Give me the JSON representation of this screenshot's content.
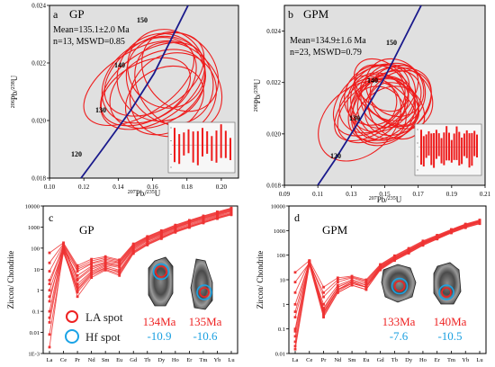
{
  "colors": {
    "ellipse": "#ee1c1c",
    "concordia": "#1a1a8c",
    "panel_bg": "#e0e0e0",
    "ree_line": "#ee3333",
    "hf_ring": "#1aa3e6",
    "la_ring": "#ee2222",
    "hf_text": "#1a9fe0",
    "la_text": "#ee2222"
  },
  "chart_data": [
    {
      "type": "scatter",
      "subtype": "concordia-ellipses",
      "panel_letter": "a",
      "name": "GP",
      "stats": [
        "Mean=135.1±2.0 Ma",
        "n=13, MSWD=0.85"
      ],
      "xlabel_parts": [
        "207",
        "Pb/",
        "235",
        "U"
      ],
      "ylabel_parts": [
        "206",
        "Pb/",
        "238",
        "U"
      ],
      "xlim": [
        0.1,
        0.21
      ],
      "ylim": [
        0.018,
        0.024
      ],
      "xticks": [
        "0.10",
        "0.12",
        "0.14",
        "0.16",
        "0.18",
        "0.20"
      ],
      "yticks": [
        "0.018",
        "0.020",
        "0.022",
        "0.024"
      ],
      "concordia_labels": [
        "120",
        "130",
        "140",
        "150"
      ],
      "ellipses": [
        {
          "x": 0.152,
          "y": 0.0213,
          "rx": 0.036,
          "ry": 0.0011,
          "rot": -32
        },
        {
          "x": 0.158,
          "y": 0.0214,
          "rx": 0.03,
          "ry": 0.0013,
          "rot": -36
        },
        {
          "x": 0.165,
          "y": 0.0215,
          "rx": 0.026,
          "ry": 0.0015,
          "rot": -40
        },
        {
          "x": 0.16,
          "y": 0.0212,
          "rx": 0.034,
          "ry": 0.0012,
          "rot": -34
        },
        {
          "x": 0.17,
          "y": 0.0214,
          "rx": 0.024,
          "ry": 0.0016,
          "rot": -42
        },
        {
          "x": 0.163,
          "y": 0.0211,
          "rx": 0.03,
          "ry": 0.0012,
          "rot": -30
        },
        {
          "x": 0.175,
          "y": 0.0212,
          "rx": 0.022,
          "ry": 0.0017,
          "rot": -44
        },
        {
          "x": 0.156,
          "y": 0.021,
          "rx": 0.028,
          "ry": 0.001,
          "rot": -28
        },
        {
          "x": 0.168,
          "y": 0.0218,
          "rx": 0.022,
          "ry": 0.0014,
          "rot": -38
        },
        {
          "x": 0.172,
          "y": 0.0209,
          "rx": 0.026,
          "ry": 0.0014,
          "rot": -36
        },
        {
          "x": 0.161,
          "y": 0.0216,
          "rx": 0.032,
          "ry": 0.0012,
          "rot": -33
        },
        {
          "x": 0.167,
          "y": 0.0207,
          "rx": 0.024,
          "ry": 0.0011,
          "rot": -30
        },
        {
          "x": 0.176,
          "y": 0.0217,
          "rx": 0.02,
          "ry": 0.0015,
          "rot": -40
        }
      ]
    },
    {
      "type": "scatter",
      "subtype": "concordia-ellipses",
      "panel_letter": "b",
      "name": "GPM",
      "stats": [
        "Mean=134.9±1.6 Ma",
        "n=23, MSWD=0.79"
      ],
      "xlabel_parts": [
        "207",
        "Pb/",
        "235",
        "U"
      ],
      "ylabel_parts": [
        "206",
        "Pb/",
        "238",
        "U"
      ],
      "xlim": [
        0.09,
        0.21
      ],
      "ylim": [
        0.018,
        0.025
      ],
      "xticks": [
        "0.09",
        "0.11",
        "0.13",
        "0.15",
        "0.17",
        "0.19",
        "0.21"
      ],
      "yticks": [
        "0.018",
        "0.020",
        "0.022",
        "0.024"
      ],
      "concordia_labels": [
        "120",
        "130",
        "140",
        "150"
      ],
      "ellipses": [
        {
          "x": 0.145,
          "y": 0.0212,
          "rx": 0.03,
          "ry": 0.001,
          "rot": -40
        },
        {
          "x": 0.15,
          "y": 0.0211,
          "rx": 0.025,
          "ry": 0.0011,
          "rot": -42
        },
        {
          "x": 0.148,
          "y": 0.0214,
          "rx": 0.022,
          "ry": 0.0012,
          "rot": -45
        },
        {
          "x": 0.152,
          "y": 0.021,
          "rx": 0.018,
          "ry": 0.0012,
          "rot": -48
        },
        {
          "x": 0.146,
          "y": 0.0213,
          "rx": 0.016,
          "ry": 0.0011,
          "rot": -40
        },
        {
          "x": 0.155,
          "y": 0.0215,
          "rx": 0.02,
          "ry": 0.0012,
          "rot": -44
        },
        {
          "x": 0.143,
          "y": 0.0209,
          "rx": 0.024,
          "ry": 0.001,
          "rot": -38
        },
        {
          "x": 0.15,
          "y": 0.0216,
          "rx": 0.014,
          "ry": 0.0013,
          "rot": -50
        },
        {
          "x": 0.158,
          "y": 0.0212,
          "rx": 0.022,
          "ry": 0.0011,
          "rot": -42
        },
        {
          "x": 0.14,
          "y": 0.0211,
          "rx": 0.018,
          "ry": 0.001,
          "rot": -36
        },
        {
          "x": 0.153,
          "y": 0.0213,
          "rx": 0.012,
          "ry": 0.0013,
          "rot": -52
        },
        {
          "x": 0.147,
          "y": 0.0208,
          "rx": 0.015,
          "ry": 0.0011,
          "rot": -40
        },
        {
          "x": 0.156,
          "y": 0.0218,
          "rx": 0.016,
          "ry": 0.0012,
          "rot": -46
        },
        {
          "x": 0.149,
          "y": 0.021,
          "rx": 0.02,
          "ry": 0.0012,
          "rot": -44
        },
        {
          "x": 0.144,
          "y": 0.0215,
          "rx": 0.019,
          "ry": 0.0011,
          "rot": -41
        },
        {
          "x": 0.16,
          "y": 0.0214,
          "rx": 0.017,
          "ry": 0.0013,
          "rot": -47
        },
        {
          "x": 0.151,
          "y": 0.0207,
          "rx": 0.021,
          "ry": 0.001,
          "rot": -38
        },
        {
          "x": 0.142,
          "y": 0.0213,
          "rx": 0.026,
          "ry": 0.0011,
          "rot": -40
        },
        {
          "x": 0.157,
          "y": 0.0209,
          "rx": 0.015,
          "ry": 0.0012,
          "rot": -44
        },
        {
          "x": 0.148,
          "y": 0.0219,
          "rx": 0.013,
          "ry": 0.0012,
          "rot": -48
        },
        {
          "x": 0.135,
          "y": 0.0205,
          "rx": 0.028,
          "ry": 0.0013,
          "rot": -42
        },
        {
          "x": 0.154,
          "y": 0.0211,
          "rx": 0.027,
          "ry": 0.0012,
          "rot": -40
        },
        {
          "x": 0.15,
          "y": 0.0213,
          "rx": 0.01,
          "ry": 0.0014,
          "rot": -55
        }
      ]
    },
    {
      "type": "line",
      "subtype": "ree-spider",
      "panel_letter": "c",
      "name": "GP",
      "ylabel": "Zircon/ Chondrite",
      "categories": [
        "La",
        "Ce",
        "Pr",
        "Nd",
        "Sm",
        "Eu",
        "Gd",
        "Tb",
        "Dy",
        "Ho",
        "Er",
        "Tm",
        "Yb",
        "Lu"
      ],
      "yticks": [
        "1E-3",
        "0.01",
        "0.1",
        "1",
        "10",
        "100",
        "1000",
        "10000"
      ],
      "ylim": [
        0.001,
        10000
      ],
      "log_y": true,
      "series": [
        {
          "values": [
            0.002,
            100,
            0.8,
            5,
            10,
            6,
            60,
            150,
            300,
            600,
            1000,
            1600,
            2600,
            4000
          ]
        },
        {
          "values": [
            0.008,
            60,
            1.0,
            6,
            12,
            7,
            70,
            170,
            340,
            650,
            1100,
            1800,
            2900,
            4500
          ]
        },
        {
          "values": [
            0.03,
            80,
            1.5,
            7,
            14,
            9,
            80,
            190,
            380,
            720,
            1200,
            2000,
            3200,
            5000
          ]
        },
        {
          "values": [
            0.1,
            120,
            2.0,
            8,
            16,
            12,
            90,
            220,
            420,
            800,
            1350,
            2200,
            3500,
            5600
          ]
        },
        {
          "values": [
            0.3,
            150,
            3.0,
            10,
            18,
            14,
            100,
            240,
            460,
            880,
            1500,
            2400,
            3800,
            6000
          ]
        },
        {
          "values": [
            1.0,
            90,
            5.0,
            14,
            22,
            18,
            120,
            280,
            520,
            980,
            1650,
            2700,
            4200,
            6500
          ]
        },
        {
          "values": [
            3.0,
            110,
            8.0,
            18,
            26,
            20,
            130,
            300,
            560,
            1050,
            1800,
            2900,
            4500,
            7000
          ]
        },
        {
          "values": [
            8.0,
            140,
            10.0,
            20,
            30,
            22,
            140,
            320,
            600,
            1100,
            1900,
            3100,
            4800,
            7500
          ]
        },
        {
          "values": [
            20,
            160,
            12.0,
            25,
            35,
            25,
            150,
            340,
            640,
            1200,
            2000,
            3300,
            5100,
            7800
          ]
        },
        {
          "values": [
            60,
            180,
            15.0,
            30,
            40,
            28,
            160,
            360,
            680,
            1250,
            2100,
            3400,
            5300,
            8000
          ]
        },
        {
          "values": [
            0.05,
            100,
            0.5,
            4,
            9,
            5,
            55,
            140,
            280,
            560,
            950,
            1550,
            2500,
            3800
          ]
        },
        {
          "values": [
            0.5,
            70,
            1.2,
            6,
            11,
            8,
            65,
            160,
            320,
            620,
            1050,
            1700,
            2750,
            4300
          ]
        },
        {
          "values": [
            2.0,
            130,
            3.5,
            12,
            20,
            15,
            110,
            260,
            500,
            950,
            1600,
            2600,
            4100,
            6400
          ]
        }
      ],
      "legend": [
        "LA spot",
        "Hf spot"
      ],
      "grain_labels": [
        {
          "age": "134Ma",
          "hf": "-10.9"
        },
        {
          "age": "135Ma",
          "hf": "-10.6"
        }
      ]
    },
    {
      "type": "line",
      "subtype": "ree-spider",
      "panel_letter": "d",
      "name": "GPM",
      "ylabel": "Zircon/ Chondrite",
      "categories": [
        "La",
        "Ce",
        "Pr",
        "Nd",
        "Sm",
        "Eu",
        "Gd",
        "Tb",
        "Dy",
        "Ho",
        "Er",
        "Tm",
        "Yb",
        "Lu"
      ],
      "yticks": [
        "0.01",
        "0.1",
        "1",
        "10",
        "100",
        "1000",
        "10000"
      ],
      "ylim": [
        0.01,
        10000
      ],
      "log_y": true,
      "series": [
        {
          "values": [
            0.015,
            40,
            0.3,
            3,
            6,
            4,
            25,
            60,
            120,
            250,
            450,
            800,
            1300,
            1900
          ]
        },
        {
          "values": [
            0.03,
            50,
            0.4,
            3.5,
            7,
            5,
            28,
            65,
            130,
            270,
            480,
            850,
            1400,
            2000
          ]
        },
        {
          "values": [
            0.05,
            55,
            0.5,
            4,
            8,
            5,
            30,
            70,
            140,
            290,
            500,
            900,
            1500,
            2200
          ]
        },
        {
          "values": [
            0.1,
            60,
            0.6,
            5,
            9,
            6,
            33,
            75,
            150,
            310,
            540,
            950,
            1600,
            2300
          ]
        },
        {
          "values": [
            0.3,
            45,
            0.5,
            4,
            8,
            5,
            30,
            72,
            145,
            300,
            520,
            920,
            1550,
            2250
          ]
        },
        {
          "values": [
            1.0,
            50,
            1.0,
            6,
            10,
            7,
            36,
            80,
            160,
            330,
            570,
            1000,
            1700,
            2400
          ]
        },
        {
          "values": [
            3.0,
            55,
            2.0,
            8,
            12,
            8,
            38,
            85,
            170,
            345,
            600,
            1050,
            1750,
            2500
          ]
        },
        {
          "values": [
            8.0,
            48,
            3.0,
            10,
            13,
            9,
            40,
            90,
            180,
            360,
            620,
            1080,
            1800,
            2600
          ]
        },
        {
          "values": [
            20,
            60,
            5.0,
            12,
            14,
            10,
            42,
            95,
            190,
            380,
            650,
            1120,
            1850,
            2700
          ]
        },
        {
          "values": [
            0.02,
            45,
            0.35,
            3,
            6,
            4,
            27,
            62,
            125,
            260,
            460,
            820,
            1350,
            1950
          ]
        },
        {
          "values": [
            0.08,
            52,
            0.45,
            4,
            7,
            5,
            31,
            70,
            140,
            290,
            505,
            900,
            1480,
            2150
          ]
        },
        {
          "values": [
            0.5,
            58,
            0.7,
            5,
            9,
            6,
            34,
            78,
            155,
            320,
            560,
            980,
            1650,
            2350
          ]
        }
      ],
      "grain_labels": [
        {
          "age": "133Ma",
          "hf": "-7.6"
        },
        {
          "age": "140Ma",
          "hf": "-10.5"
        }
      ]
    }
  ]
}
